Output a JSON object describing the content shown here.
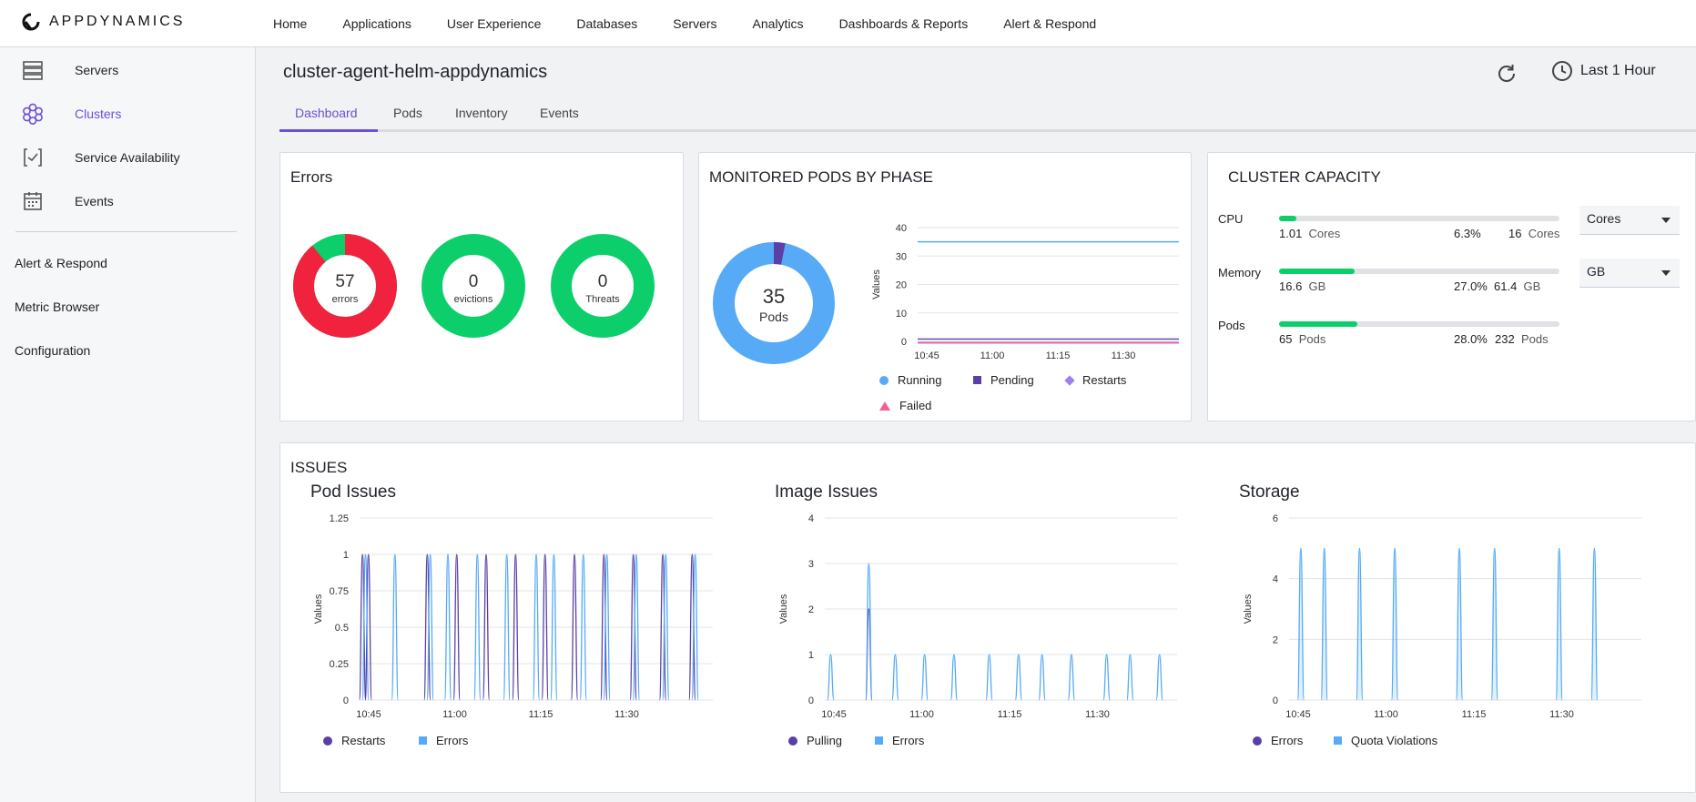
{
  "brand": {
    "name": "APPDYNAMICS"
  },
  "nav": {
    "items": [
      "Home",
      "Applications",
      "User Experience",
      "Databases",
      "Servers",
      "Analytics",
      "Dashboards & Reports",
      "Alert & Respond"
    ]
  },
  "sidebar": {
    "items": [
      {
        "label": "Servers",
        "icon": "servers-icon"
      },
      {
        "label": "Clusters",
        "icon": "clusters-icon",
        "active": true
      },
      {
        "label": "Service Availability",
        "icon": "service-availability-icon"
      },
      {
        "label": "Events",
        "icon": "calendar-icon"
      }
    ],
    "links": [
      "Alert & Respond",
      "Metric Browser",
      "Configuration"
    ]
  },
  "header": {
    "title": "cluster-agent-helm-appdynamics",
    "time_range": "Last 1 Hour"
  },
  "tabs": [
    "Dashboard",
    "Pods",
    "Inventory",
    "Events"
  ],
  "errors_card": {
    "title": "Errors",
    "donuts": [
      {
        "value": "57",
        "label": "errors",
        "red_fraction": 0.89,
        "green_fraction": 0.11
      },
      {
        "value": "0",
        "label": "evictions"
      },
      {
        "value": "0",
        "label": "Threats"
      }
    ]
  },
  "pods_card": {
    "title": "MONITORED PODS BY PHASE",
    "donut": {
      "value": "35",
      "label": "Pods",
      "running_fraction": 0.97,
      "pending_fraction": 0.03
    },
    "legend": [
      "Running",
      "Pending",
      "Restarts",
      "Failed"
    ],
    "ylabel": "Values"
  },
  "capacity_card": {
    "title": "CLUSTER CAPACITY",
    "rows": [
      {
        "label": "CPU",
        "used": "1.01",
        "used_unit": "Cores",
        "pct": "6.3%",
        "total": "16",
        "total_unit": "Cores",
        "fraction": 0.063
      },
      {
        "label": "Memory",
        "used": "16.6",
        "used_unit": "GB",
        "pct": "27.0%",
        "total": "61.4",
        "total_unit": "GB",
        "fraction": 0.27
      },
      {
        "label": "Pods",
        "used": "65",
        "used_unit": "Pods",
        "pct": "28.0%",
        "total": "232",
        "total_unit": "Pods",
        "fraction": 0.28
      }
    ],
    "selects": [
      "Cores",
      "GB"
    ]
  },
  "issues": {
    "title": "ISSUES",
    "panels": [
      {
        "title": "Pod Issues",
        "legend": [
          "Restarts",
          "Errors"
        ]
      },
      {
        "title": "Image Issues",
        "legend": [
          "Pulling",
          "Errors"
        ]
      },
      {
        "title": "Storage",
        "legend": [
          "Errors",
          "Quota Violations"
        ]
      }
    ]
  },
  "colors": {
    "accent": "#6e50d8",
    "green": "#0ccf6b",
    "red": "#f0223d",
    "blue": "#56aaf6",
    "purple": "#5b3fa8"
  },
  "chart_data": [
    {
      "type": "line",
      "title": "",
      "ylabel": "Values",
      "x": [
        "10:45",
        "11:00",
        "11:15",
        "11:30"
      ],
      "ylim": [
        0,
        40
      ],
      "yticks": [
        0,
        10,
        20,
        30,
        40
      ],
      "series": [
        {
          "name": "Running",
          "values": [
            35,
            35,
            35,
            35
          ]
        },
        {
          "name": "Pending",
          "values": [
            1,
            1,
            1,
            1
          ]
        },
        {
          "name": "Restarts",
          "values": [
            0,
            0,
            0,
            0
          ]
        },
        {
          "name": "Failed",
          "values": [
            0,
            0,
            0,
            0
          ]
        }
      ]
    },
    {
      "type": "line",
      "title": "Pod Issues",
      "ylabel": "Values",
      "x": [
        "10:45",
        "11:00",
        "11:15",
        "11:30"
      ],
      "ylim": [
        0,
        1.25
      ],
      "yticks": [
        "0",
        "0.25",
        "0.5",
        "0.75",
        "1",
        "1.25"
      ],
      "series": [
        {
          "name": "Restarts",
          "spikes_minutes": [
            0.5,
            1.5,
            11.5,
            16.5,
            21.5,
            26.5,
            31.5,
            36.5,
            41.5,
            46.5,
            51.5,
            56.5
          ],
          "peak": 1
        },
        {
          "name": "Errors",
          "spikes_minutes": [
            1,
            6,
            12,
            15,
            20,
            25,
            30,
            33,
            38,
            42,
            47,
            52,
            57
          ],
          "peak": 1
        }
      ]
    },
    {
      "type": "line",
      "title": "Image Issues",
      "ylabel": "Values",
      "x": [
        "10:45",
        "11:00",
        "11:15",
        "11:30"
      ],
      "ylim": [
        0,
        4
      ],
      "yticks": [
        "0",
        "1",
        "2",
        "3",
        "4"
      ],
      "series": [
        {
          "name": "Pulling",
          "spikes_minutes": [
            7.5
          ],
          "peak": 2
        },
        {
          "name": "Errors",
          "spikes_minutes": [
            1,
            7.5,
            12,
            17,
            22,
            28,
            33,
            37,
            42,
            48,
            52,
            57
          ],
          "peaks": [
            1,
            3,
            1,
            1,
            1,
            1,
            1,
            1,
            1,
            1,
            1,
            1
          ]
        }
      ]
    },
    {
      "type": "area",
      "title": "Storage",
      "ylabel": "Values",
      "x": [
        "10:45",
        "11:00",
        "11:15",
        "11:30"
      ],
      "ylim": [
        0,
        6
      ],
      "yticks": [
        "0",
        "2",
        "4",
        "6"
      ],
      "series": [
        {
          "name": "Errors",
          "spikes_minutes": [],
          "peak": 0
        },
        {
          "name": "Quota Violations",
          "spikes_minutes": [
            2,
            6,
            12,
            18,
            29,
            35,
            46,
            52
          ],
          "peak": 5
        }
      ]
    }
  ]
}
